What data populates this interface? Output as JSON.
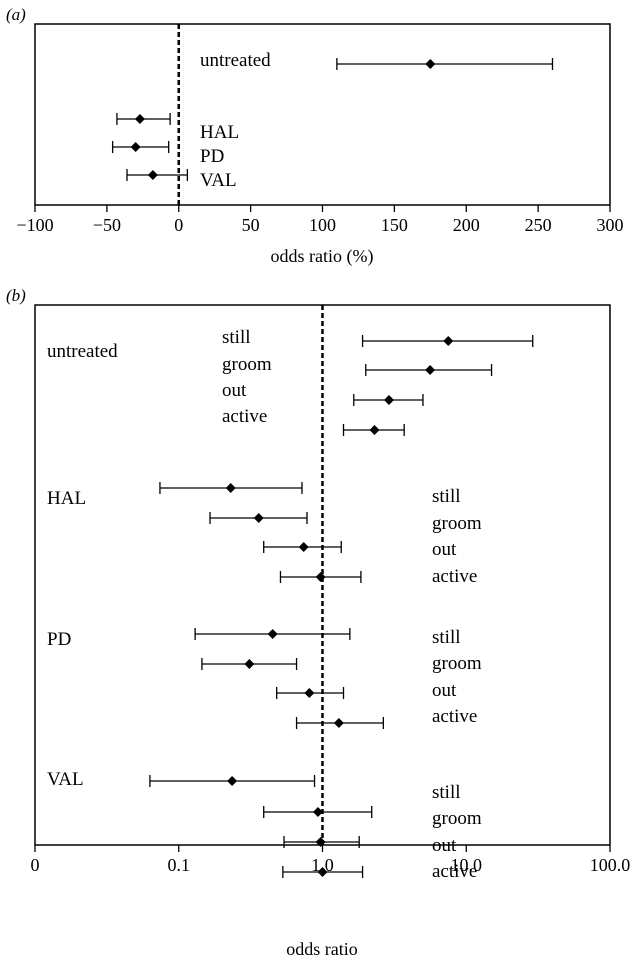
{
  "chart_data": [
    {
      "panel_label": "(a)",
      "type": "scatter",
      "xlabel": "odds ratio (%)",
      "xlim": [
        -100,
        300
      ],
      "xticks": [
        -100,
        -50,
        0,
        50,
        100,
        150,
        200,
        250,
        300
      ],
      "xtick_labels": [
        "−100",
        "−50",
        "0",
        "50",
        "100",
        "150",
        "200",
        "250",
        "300"
      ],
      "reference_line": 0,
      "group_labels": [
        "untreated",
        "HAL",
        "PD",
        "VAL"
      ],
      "points": [
        {
          "group": "untreated",
          "value": 175,
          "low": 110,
          "high": 260
        },
        {
          "group": "HAL",
          "value": -27,
          "low": -43,
          "high": -6
        },
        {
          "group": "PD",
          "value": -30,
          "low": -46,
          "high": -7
        },
        {
          "group": "VAL",
          "value": -18,
          "low": -36,
          "high": 6
        }
      ]
    },
    {
      "panel_label": "(b)",
      "type": "scatter",
      "xlabel": "odds ratio",
      "xscale": "log",
      "xlim": [
        0.01,
        100
      ],
      "xticks": [
        0.01,
        0.1,
        1,
        10,
        100
      ],
      "xtick_labels": [
        "0",
        "0.1",
        "1.0",
        "10.0",
        "100.0"
      ],
      "reference_line": 1,
      "groups": [
        {
          "name": "untreated",
          "behaviours": [
            "still",
            "groom",
            "out",
            "active"
          ],
          "points": [
            {
              "value": 7.5,
              "low": 1.9,
              "high": 29
            },
            {
              "value": 5.6,
              "low": 2.0,
              "high": 15
            },
            {
              "value": 2.9,
              "low": 1.65,
              "high": 5.0
            },
            {
              "value": 2.3,
              "low": 1.4,
              "high": 3.7
            }
          ]
        },
        {
          "name": "HAL",
          "behaviours": [
            "still",
            "groom",
            "out",
            "active"
          ],
          "points": [
            {
              "value": 0.23,
              "low": 0.074,
              "high": 0.72
            },
            {
              "value": 0.36,
              "low": 0.165,
              "high": 0.78
            },
            {
              "value": 0.74,
              "low": 0.39,
              "high": 1.35
            },
            {
              "value": 0.97,
              "low": 0.51,
              "high": 1.85
            }
          ]
        },
        {
          "name": "PD",
          "behaviours": [
            "still",
            "groom",
            "out",
            "active"
          ],
          "points": [
            {
              "value": 0.45,
              "low": 0.13,
              "high": 1.55
            },
            {
              "value": 0.31,
              "low": 0.145,
              "high": 0.66
            },
            {
              "value": 0.81,
              "low": 0.48,
              "high": 1.4
            },
            {
              "value": 1.3,
              "low": 0.66,
              "high": 2.65
            }
          ]
        },
        {
          "name": "VAL",
          "behaviours": [
            "still",
            "groom",
            "out",
            "active"
          ],
          "points": [
            {
              "value": 0.235,
              "low": 0.063,
              "high": 0.88
            },
            {
              "value": 0.93,
              "low": 0.39,
              "high": 2.2
            },
            {
              "value": 0.97,
              "low": 0.54,
              "high": 1.8
            },
            {
              "value": 1.0,
              "low": 0.53,
              "high": 1.9
            }
          ]
        }
      ]
    }
  ]
}
